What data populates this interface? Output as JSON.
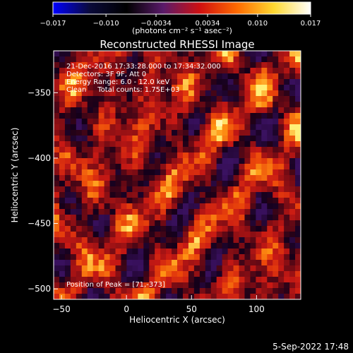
{
  "colorbar": {
    "ticks": [
      "−0.017",
      "−0.010",
      "−0.0034",
      "0.0034",
      "0.010",
      "0.017"
    ],
    "tick_values": [
      -0.017,
      -0.01,
      -0.0034,
      0.0034,
      0.01,
      0.017
    ],
    "range": [
      -0.017,
      0.017
    ],
    "unit_label": "(photons cm⁻² s⁻¹ asec⁻²)",
    "colors": [
      "#0000ff",
      "#0a0a3a",
      "#000000",
      "#5a1a6a",
      "#d01010",
      "#ff6a00",
      "#ffd830",
      "#ffffff"
    ]
  },
  "chart_data": {
    "type": "heatmap",
    "title": "Reconstructed RHESSI Image",
    "xlabel": "Heliocentric X (arcsec)",
    "ylabel": "Heliocentric Y (arcsec)",
    "xlim": [
      -56,
      134
    ],
    "ylim": [
      -508,
      -318
    ],
    "xticks": [
      -50,
      0,
      50,
      100
    ],
    "yticks": [
      -350,
      -400,
      -450,
      -500
    ],
    "xtick_labels": [
      "−50",
      "0",
      "50",
      "100"
    ],
    "ytick_labels": [
      "−350",
      "−400",
      "−450",
      "−500"
    ],
    "colormap": "rhessi-hot",
    "annotations": [
      "21-Dec-2016 17:33:28.000 to 17:34:32.000",
      "Detectors: 3F 9F, Att 0",
      "Energy Range: 6.0 - 12.0 keV",
      "Clean     Total counts: 1.75E+03"
    ],
    "peak_label": "Position of Peak = [71,-373]",
    "peak": [
      71,
      -373
    ]
  },
  "footer": {
    "date": "5-Sep-2022 17:48"
  }
}
